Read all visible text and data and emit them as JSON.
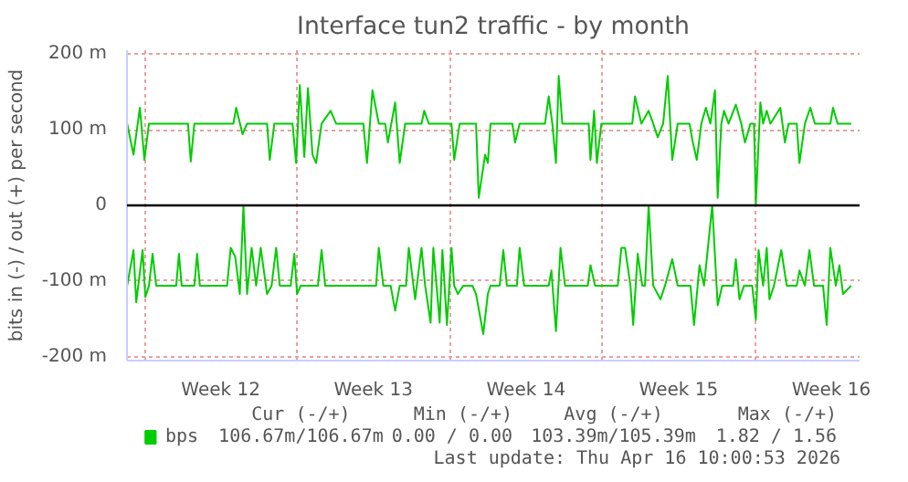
{
  "chart_data": {
    "type": "line",
    "title": "Interface tun2 traffic - by month",
    "ylabel": "bits in (-) / out (+) per second",
    "xlim": [
      "2026-03-15T04:48",
      "2026-04-17T19:12"
    ],
    "xticks": [
      {
        "value": "2026-03-16",
        "label": null
      },
      {
        "value": "2026-03-19T12:00",
        "label": "Week 12"
      },
      {
        "value": "2026-03-23",
        "label": null
      },
      {
        "value": "2026-03-26T12:00",
        "label": "Week 13"
      },
      {
        "value": "2026-03-30",
        "label": null
      },
      {
        "value": "2026-04-02T12:00",
        "label": "Week 14"
      },
      {
        "value": "2026-04-06",
        "label": null
      },
      {
        "value": "2026-04-09T12:00",
        "label": "Week 15"
      },
      {
        "value": "2026-04-13",
        "label": null
      },
      {
        "value": "2026-04-16T12:00",
        "label": "Week 16"
      }
    ],
    "ylim": [
      -205,
      205
    ],
    "yticks": [
      {
        "value": -200,
        "label": "-200 m"
      },
      {
        "value": -100,
        "label": "-100 m"
      },
      0,
      {
        "value": 100,
        "label": "100 m"
      },
      {
        "value": 200,
        "label": "200 m"
      }
    ],
    "grid": true,
    "legend": "bottom",
    "ref_lines": [
      {
        "axis": "y",
        "value": 0,
        "color": "#000000"
      }
    ],
    "annotations": [
      "Cur (-/+)",
      "Min (-/+)",
      "Avg (-/+)",
      "Max (-/+)",
      "106.67m/106.67m",
      "0.00 /   0.00",
      "103.39m/105.39m",
      "1.82 /   1.56",
      "Last update: Thu Apr 16 10:00:53 2026"
    ],
    "series": [
      {
        "name": "bps",
        "color": "#00cc00",
        "x": [
          "2026-03-15T05:00",
          "2026-03-15T12:00",
          "2026-03-15T19:00",
          "2026-03-16T00:00",
          "2026-03-16T05:00",
          "2026-03-18T00:00",
          "2026-03-18T03:00",
          "2026-03-18T07:00",
          "2026-03-20T02:00",
          "2026-03-20T05:00",
          "2026-03-20T12:00",
          "2026-03-20T17:00",
          "2026-03-21T15:00",
          "2026-03-21T18:00",
          "2026-03-21T23:00",
          "2026-03-22T19:00",
          "2026-03-22T23:00",
          "2026-03-23T03:00",
          "2026-03-23T08:00",
          "2026-03-23T12:00",
          "2026-03-23T17:00",
          "2026-03-23T21:00",
          "2026-03-24T03:00",
          "2026-03-24T13:00",
          "2026-03-24T19:00",
          "2026-03-26T01:00",
          "2026-03-26T05:00",
          "2026-03-26T11:00",
          "2026-03-26T18:00",
          "2026-03-27T01:00",
          "2026-03-27T04:00",
          "2026-03-27T12:00",
          "2026-03-27T17:00",
          "2026-03-27T23:00",
          "2026-03-28T17:00",
          "2026-03-28T20:00",
          "2026-03-29T01:00",
          "2026-03-30T02:00",
          "2026-03-30T05:00",
          "2026-03-30T11:00",
          "2026-03-31T05:00",
          "2026-03-31T08:00",
          "2026-03-31T15:00",
          "2026-03-31T18:00",
          "2026-03-31T21:00",
          "2026-04-01T21:00",
          "2026-04-02T00:00",
          "2026-04-02T05:00",
          "2026-04-03T09:00",
          "2026-04-03T13:00",
          "2026-04-03T17:00",
          "2026-04-03T21:00",
          "2026-04-04T00:00",
          "2026-04-04T04:00",
          "2026-04-05T09:00",
          "2026-04-05T11:00",
          "2026-04-05T15:00",
          "2026-04-05T18:00",
          "2026-04-05T23:00",
          "2026-04-07T09:00",
          "2026-04-07T12:00",
          "2026-04-07T19:00",
          "2026-04-08T03:00",
          "2026-04-08T08:00",
          "2026-04-08T13:00",
          "2026-04-08T19:00",
          "2026-04-09T00:00",
          "2026-04-09T05:00",
          "2026-04-09T11:00",
          "2026-04-10T00:00",
          "2026-04-10T03:00",
          "2026-04-10T08:00",
          "2026-04-10T13:00",
          "2026-04-10T18:00",
          "2026-04-10T23:00",
          "2026-04-11T04:00",
          "2026-04-11T07:00",
          "2026-04-11T11:00",
          "2026-04-11T14:00",
          "2026-04-11T19:00",
          "2026-04-12T03:00",
          "2026-04-12T09:00",
          "2026-04-12T13:00",
          "2026-04-12T19:00",
          "2026-04-12T23:00",
          "2026-04-13T01:00",
          "2026-04-13T06:00",
          "2026-04-13T09:00",
          "2026-04-13T13:00",
          "2026-04-13T17:00",
          "2026-04-14T04:00",
          "2026-04-14T09:00",
          "2026-04-14T13:00",
          "2026-04-14T22:00",
          "2026-04-15T01:00",
          "2026-04-15T07:00",
          "2026-04-15T13:00",
          "2026-04-15T18:00",
          "2026-04-16T11:00",
          "2026-04-16T14:00",
          "2026-04-16T19:00",
          "2026-04-17T10:00"
        ],
        "values": [
          108,
          67,
          129,
          60,
          108,
          108,
          58,
          108,
          108,
          129,
          94,
          108,
          108,
          60,
          108,
          108,
          56,
          159,
          64,
          155,
          67,
          56,
          108,
          125,
          108,
          108,
          56,
          152,
          108,
          108,
          83,
          136,
          56,
          108,
          108,
          125,
          108,
          108,
          60,
          108,
          108,
          10,
          67,
          56,
          108,
          108,
          83,
          108,
          108,
          144,
          108,
          56,
          171,
          108,
          108,
          60,
          125,
          56,
          108,
          108,
          144,
          108,
          125,
          108,
          90,
          108,
          171,
          60,
          108,
          108,
          87,
          60,
          108,
          129,
          108,
          152,
          10,
          108,
          125,
          108,
          133,
          108,
          83,
          108,
          108,
          2,
          136,
          108,
          125,
          108,
          129,
          83,
          108,
          108,
          56,
          108,
          129,
          108,
          108,
          129,
          108,
          108
        ]
      },
      {
        "color": "#00cc00",
        "x": [
          "2026-03-15T05:00",
          "2026-03-15T12:00",
          "2026-03-15T15:00",
          "2026-03-15T22:00",
          "2026-03-16T01:00",
          "2026-03-16T05:00",
          "2026-03-16T09:00",
          "2026-03-16T13:00",
          "2026-03-17T11:00",
          "2026-03-17T14:00",
          "2026-03-17T17:00",
          "2026-03-18T07:00",
          "2026-03-18T10:00",
          "2026-03-18T13:00",
          "2026-03-19T19:00",
          "2026-03-19T23:00",
          "2026-03-20T04:00",
          "2026-03-20T09:00",
          "2026-03-20T13:00",
          "2026-03-20T17:00",
          "2026-03-20T22:00",
          "2026-03-21T03:00",
          "2026-03-21T08:00",
          "2026-03-21T15:00",
          "2026-03-21T20:00",
          "2026-03-22T01:00",
          "2026-03-22T05:00",
          "2026-03-22T17:00",
          "2026-03-22T21:00",
          "2026-03-23T00:00",
          "2026-03-23T04:00",
          "2026-03-23T23:00",
          "2026-03-24T03:00",
          "2026-03-24T07:00",
          "2026-03-26T15:00",
          "2026-03-26T18:00",
          "2026-03-26T23:00",
          "2026-03-27T07:00",
          "2026-03-27T12:00",
          "2026-03-27T17:00",
          "2026-03-28T00:00",
          "2026-03-28T03:00",
          "2026-03-28T10:00",
          "2026-03-28T17:00",
          "2026-03-28T21:00",
          "2026-03-29T03:00",
          "2026-03-29T06:00",
          "2026-03-29T13:00",
          "2026-03-29T16:00",
          "2026-03-29T21:00",
          "2026-03-30T02:00",
          "2026-03-30T05:00",
          "2026-03-30T09:00",
          "2026-03-30T15:00",
          "2026-03-31T01:00",
          "2026-03-31T05:00",
          "2026-03-31T13:00",
          "2026-03-31T18:00",
          "2026-03-31T21:00",
          "2026-04-01T07:00",
          "2026-04-01T11:00",
          "2026-04-01T15:00",
          "2026-04-02T02:00",
          "2026-04-02T05:00",
          "2026-04-02T10:00",
          "2026-04-03T13:00",
          "2026-04-03T16:00",
          "2026-04-03T21:00",
          "2026-04-04T02:00",
          "2026-04-04T07:00",
          "2026-04-05T08:00",
          "2026-04-05T11:00",
          "2026-04-05T16:00",
          "2026-04-06T17:00",
          "2026-04-06T21:00",
          "2026-04-07T01:00",
          "2026-04-07T07:00",
          "2026-04-07T10:00",
          "2026-04-07T15:00",
          "2026-04-07T20:00",
          "2026-04-07T23:00",
          "2026-04-08T03:00",
          "2026-04-08T08:00",
          "2026-04-08T16:00",
          "2026-04-08T21:00",
          "2026-04-09T05:00",
          "2026-04-09T11:00",
          "2026-04-10T01:00",
          "2026-04-10T05:00",
          "2026-04-10T11:00",
          "2026-04-10T16:00",
          "2026-04-11T01:00",
          "2026-04-11T07:00",
          "2026-04-11T12:00",
          "2026-04-12T00:00",
          "2026-04-12T03:00",
          "2026-04-12T07:00",
          "2026-04-12T12:00",
          "2026-04-12T21:00",
          "2026-04-13T01:00",
          "2026-04-13T04:00",
          "2026-04-13T09:00",
          "2026-04-13T13:00",
          "2026-04-13T16:00",
          "2026-04-13T21:00",
          "2026-04-14T05:00",
          "2026-04-14T11:00",
          "2026-04-14T22:00",
          "2026-04-15T01:00",
          "2026-04-15T07:00",
          "2026-04-15T12:00",
          "2026-04-15T17:00",
          "2026-04-16T03:00",
          "2026-04-16T07:00",
          "2026-04-16T11:00",
          "2026-04-16T17:00",
          "2026-04-16T21:00",
          "2026-04-17T01:00",
          "2026-04-17T10:00"
        ],
        "values": [
          -106,
          -59,
          -128,
          -59,
          -121,
          -106,
          -64,
          -106,
          -106,
          -64,
          -106,
          -106,
          -64,
          -106,
          -106,
          -56,
          -68,
          -117,
          0,
          -117,
          -56,
          -106,
          -56,
          -117,
          -106,
          -56,
          -106,
          -106,
          -64,
          -117,
          -106,
          -106,
          -59,
          -106,
          -106,
          -56,
          -106,
          -106,
          -139,
          -106,
          -106,
          -56,
          -124,
          -56,
          -106,
          -155,
          -56,
          -155,
          -59,
          -158,
          -56,
          -106,
          -117,
          -106,
          -106,
          -117,
          -170,
          -117,
          -106,
          -106,
          -59,
          -106,
          -106,
          -56,
          -106,
          -106,
          -86,
          -166,
          -56,
          -106,
          -106,
          -79,
          -106,
          -106,
          -56,
          -56,
          -106,
          -158,
          -64,
          -106,
          -106,
          0,
          -106,
          -124,
          -106,
          -71,
          -106,
          -106,
          -158,
          -79,
          -106,
          0,
          -132,
          -106,
          -106,
          -71,
          -124,
          -106,
          -106,
          -151,
          -59,
          -106,
          -56,
          -124,
          -106,
          -59,
          -106,
          -106,
          -86,
          -106,
          -59,
          -106,
          -106,
          -158,
          -56,
          -106,
          -79,
          -117,
          -106
        ]
      }
    ]
  }
}
